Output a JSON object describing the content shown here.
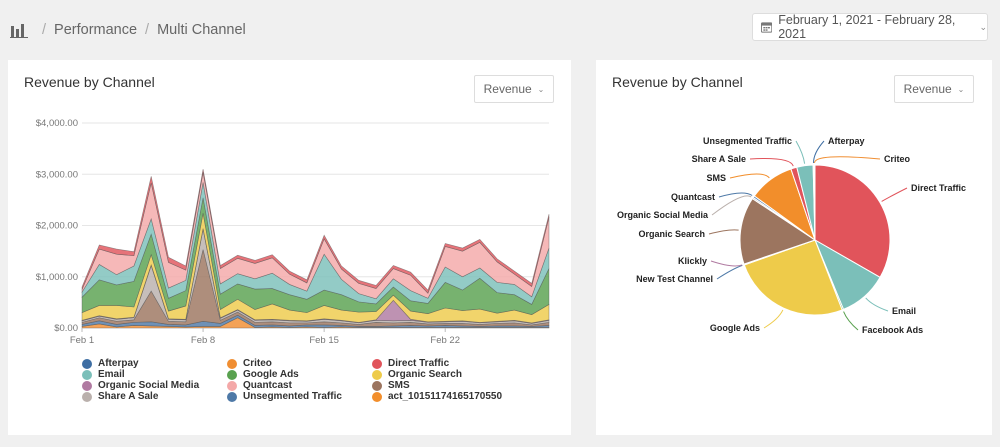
{
  "breadcrumb": {
    "section": "Performance",
    "page": "Multi Channel",
    "separator": "/"
  },
  "date_range": {
    "label": "February 1, 2021 - February 28, 2021"
  },
  "area_card": {
    "title": "Revenue by Channel",
    "metric_select": "Revenue"
  },
  "pie_card": {
    "title": "Revenue by Channel",
    "metric_select": "Revenue"
  },
  "colors": {
    "Afterpay": "#3e6ea3",
    "Criteo": "#f08e32",
    "Direct Traffic": "#e1545b",
    "Email": "#7bbfb9",
    "Google Ads": "#59a14f",
    "Organic Search": "#eecb4a",
    "Organic Social Media": "#b07aa1",
    "Quantcast": "#f4a8a8",
    "SMS": "#9c755f",
    "Share A Sale": "#bab0ac",
    "Unsegmented Traffic": "#4e79a7",
    "act_10151174165170550": "#f28e2b",
    "New Test Channel": "#4e79a7",
    "Klickly": "#b07aa1",
    "Facebook Ads": "#59a14f"
  },
  "legend": [
    {
      "name": "Afterpay",
      "color": "#3e6ea3"
    },
    {
      "name": "Criteo",
      "color": "#f08e32"
    },
    {
      "name": "Direct Traffic",
      "color": "#e1545b"
    },
    {
      "name": "Email",
      "color": "#7bbfb9"
    },
    {
      "name": "Google Ads",
      "color": "#59a14f"
    },
    {
      "name": "Organic Search",
      "color": "#eecb4a"
    },
    {
      "name": "Organic Social Media",
      "color": "#b07aa1"
    },
    {
      "name": "Quantcast",
      "color": "#f4a8a8"
    },
    {
      "name": "SMS",
      "color": "#9c755f"
    },
    {
      "name": "Share A Sale",
      "color": "#bab0ac"
    },
    {
      "name": "Unsegmented Traffic",
      "color": "#4e79a7"
    },
    {
      "name": "act_10151174165170550",
      "color": "#f28e2b"
    }
  ],
  "chart_data": [
    {
      "type": "area",
      "stacked": true,
      "title": "Revenue by Channel",
      "ylim": [
        0,
        4000
      ],
      "yticks": [
        0,
        1000,
        2000,
        3000,
        4000
      ],
      "ytick_labels": [
        "$0.00",
        "$1,000.00",
        "$2,000.00",
        "$3,000.00",
        "$4,000.00"
      ],
      "xtick_labels": [
        {
          "label": "Feb 1",
          "day": 1
        },
        {
          "label": "Feb 8",
          "day": 8
        },
        {
          "label": "Feb 15",
          "day": 15
        },
        {
          "label": "Feb 22",
          "day": 22
        }
      ],
      "x": [
        1,
        2,
        3,
        4,
        5,
        6,
        7,
        8,
        9,
        10,
        11,
        12,
        13,
        14,
        15,
        16,
        17,
        18,
        19,
        20,
        21,
        22,
        23,
        24,
        25,
        26,
        27,
        28
      ],
      "series": [
        {
          "name": "Criteo",
          "values": [
            30,
            80,
            20,
            50,
            40,
            30,
            20,
            30,
            30,
            200,
            10,
            20,
            10,
            20,
            10,
            20,
            10,
            10,
            10,
            10,
            10,
            10,
            10,
            10,
            10,
            10,
            10,
            10
          ]
        },
        {
          "name": "Unsegmented Traffic",
          "values": [
            40,
            60,
            50,
            60,
            80,
            40,
            40,
            100,
            60,
            50,
            40,
            40,
            30,
            40,
            50,
            30,
            20,
            20,
            30,
            40,
            30,
            40,
            30,
            20,
            30,
            30,
            20,
            40
          ]
        },
        {
          "name": "SMS",
          "values": [
            40,
            60,
            60,
            50,
            600,
            60,
            60,
            1400,
            60,
            60,
            60,
            60,
            60,
            40,
            60,
            50,
            40,
            80,
            60,
            60,
            40,
            40,
            50,
            40,
            50,
            60,
            30,
            60
          ]
        },
        {
          "name": "Share A Sale",
          "values": [
            30,
            30,
            40,
            40,
            500,
            40,
            40,
            400,
            40,
            40,
            40,
            40,
            40,
            30,
            50,
            40,
            30,
            40,
            40,
            40,
            30,
            30,
            40,
            30,
            30,
            40,
            30,
            40
          ]
        },
        {
          "name": "Organic Social Media",
          "values": [
            10,
            10,
            10,
            10,
            10,
            10,
            10,
            10,
            10,
            10,
            10,
            10,
            10,
            10,
            10,
            10,
            10,
            10,
            400,
            20,
            10,
            10,
            10,
            10,
            10,
            10,
            10,
            10
          ]
        },
        {
          "name": "Organic Search",
          "values": [
            150,
            200,
            260,
            200,
            200,
            150,
            260,
            300,
            160,
            200,
            200,
            300,
            200,
            160,
            260,
            200,
            200,
            160,
            100,
            160,
            160,
            260,
            200,
            260,
            160,
            200,
            160,
            300
          ]
        },
        {
          "name": "Google Ads",
          "values": [
            300,
            500,
            400,
            500,
            400,
            250,
            300,
            300,
            300,
            300,
            400,
            300,
            300,
            260,
            300,
            300,
            200,
            150,
            160,
            200,
            200,
            500,
            400,
            600,
            400,
            300,
            200,
            700
          ]
        },
        {
          "name": "Email",
          "values": [
            100,
            300,
            200,
            300,
            300,
            200,
            200,
            300,
            200,
            200,
            200,
            300,
            200,
            160,
            700,
            300,
            160,
            100,
            160,
            200,
            100,
            300,
            260,
            200,
            200,
            200,
            150,
            400
          ]
        },
        {
          "name": "Quantcast",
          "values": [
            50,
            300,
            400,
            200,
            700,
            500,
            200,
            200,
            300,
            300,
            300,
            300,
            200,
            160,
            300,
            200,
            200,
            200,
            200,
            300,
            100,
            400,
            500,
            500,
            400,
            200,
            200,
            600
          ]
        },
        {
          "name": "Direct Traffic",
          "values": [
            50,
            80,
            100,
            80,
            130,
            100,
            80,
            60,
            60,
            60,
            60,
            60,
            60,
            60,
            70,
            60,
            60,
            60,
            60,
            60,
            60,
            60,
            60,
            60,
            60,
            60,
            60,
            60
          ]
        }
      ]
    },
    {
      "type": "pie",
      "title": "Revenue by Channel",
      "slices": [
        {
          "name": "Direct Traffic",
          "value": 33.3,
          "color": "#e1545b"
        },
        {
          "name": "Email",
          "value": 10.5,
          "color": "#7bbfb9"
        },
        {
          "name": "Facebook Ads",
          "value": 0.3,
          "color": "#59a14f"
        },
        {
          "name": "Google Ads",
          "value": 25.5,
          "color": "#eecb4a"
        },
        {
          "name": "New Test Channel",
          "value": 0.1,
          "color": "#4e79a7"
        },
        {
          "name": "Klickly",
          "value": 0.1,
          "color": "#b07aa1"
        },
        {
          "name": "Organic Search",
          "value": 14.5,
          "color": "#9c755f"
        },
        {
          "name": "Organic Social Media",
          "value": 0.3,
          "color": "#bab0ac"
        },
        {
          "name": "Quantcast",
          "value": 0.4,
          "color": "#4e79a7"
        },
        {
          "name": "SMS",
          "value": 9.8,
          "color": "#f28e2b"
        },
        {
          "name": "Share A Sale",
          "value": 1.3,
          "color": "#e1545b"
        },
        {
          "name": "Unsegmented Traffic",
          "value": 3.5,
          "color": "#7bbfb9"
        },
        {
          "name": "Afterpay",
          "value": 0.2,
          "color": "#3e6ea3"
        },
        {
          "name": "Criteo",
          "value": 0.2,
          "color": "#f08e32"
        }
      ]
    }
  ]
}
